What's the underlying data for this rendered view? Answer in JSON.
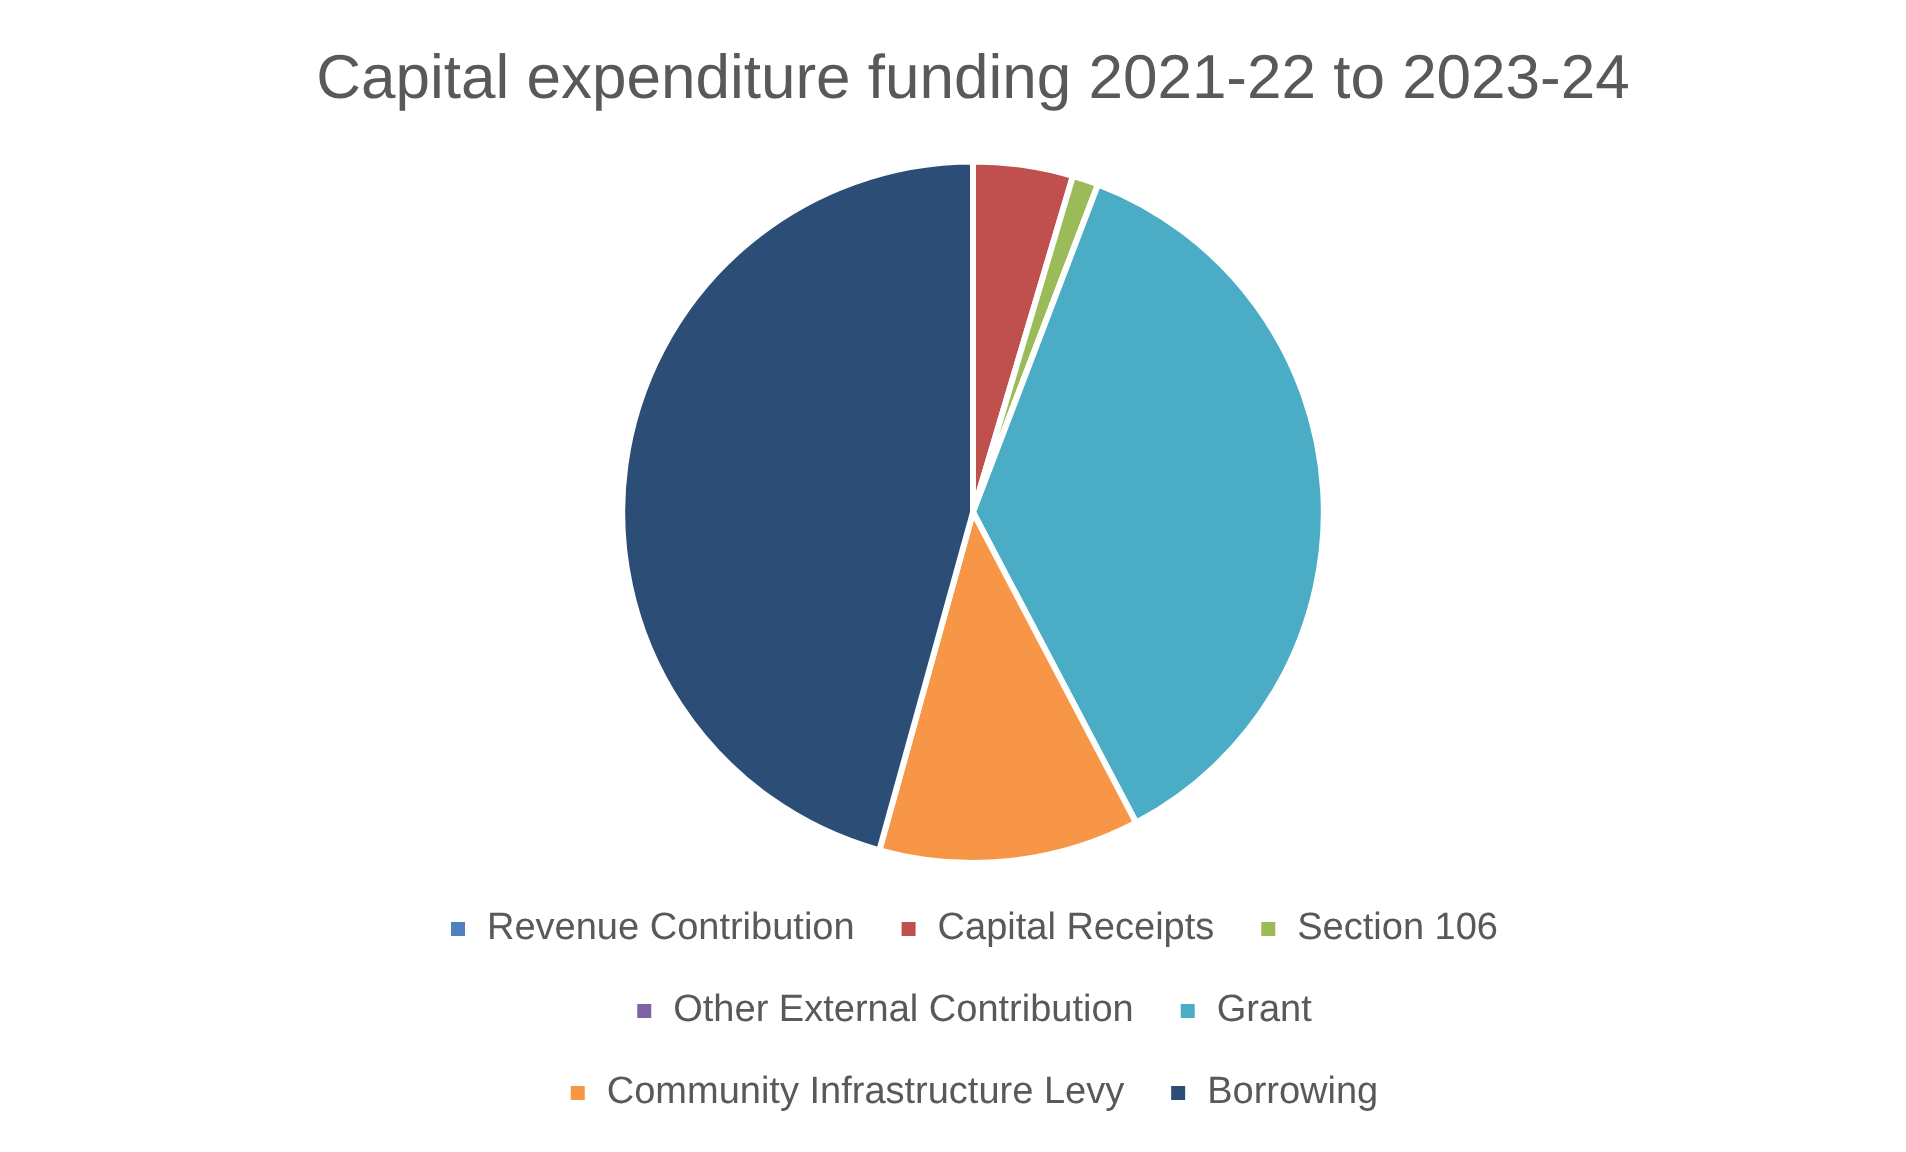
{
  "chart_data": {
    "type": "pie",
    "title": "Capital expenditure funding 2021-22 to 2023-24",
    "categories": [
      "Revenue Contribution",
      "Capital Receipts",
      "Section 106",
      "Other External Contribution",
      "Grant",
      "Community Infrastructure Levy",
      "Borrowing"
    ],
    "values": [
      0,
      4.6,
      1.2,
      0,
      36.5,
      12,
      45.7
    ],
    "colors": [
      "#4f81bd",
      "#c0504d",
      "#9bbb59",
      "#8064a2",
      "#4bacc6",
      "#f79646",
      "#2c4d75"
    ],
    "legend": "bottom"
  }
}
